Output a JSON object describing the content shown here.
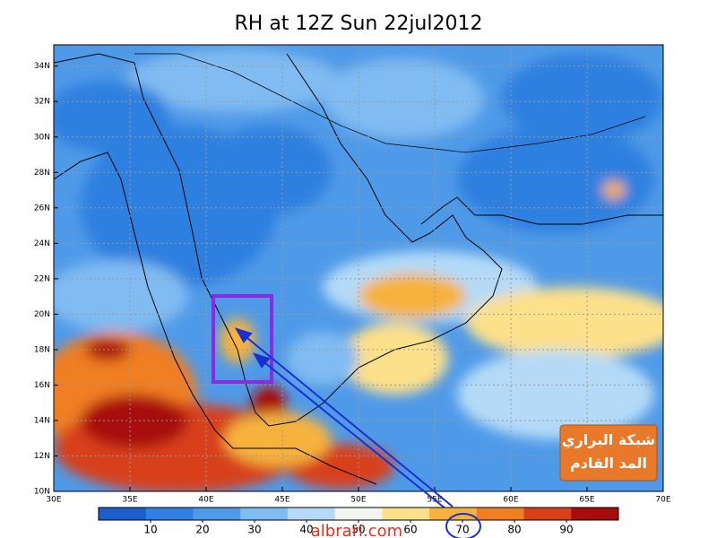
{
  "map": {
    "title": "RH at 12Z Sun 22jul2012",
    "latlim": [
      10,
      35.2
    ],
    "lonlim": [
      30,
      70
    ],
    "lat_ticks": [
      {
        "value": 10,
        "label": "10N"
      },
      {
        "value": 12,
        "label": "12N"
      },
      {
        "value": 14,
        "label": "14N"
      },
      {
        "value": 16,
        "label": "16N"
      },
      {
        "value": 18,
        "label": "18N"
      },
      {
        "value": 20,
        "label": "20N"
      },
      {
        "value": 22,
        "label": "22N"
      },
      {
        "value": 24,
        "label": "24N"
      },
      {
        "value": 26,
        "label": "26N"
      },
      {
        "value": 28,
        "label": "28N"
      },
      {
        "value": 30,
        "label": "30N"
      },
      {
        "value": 32,
        "label": "32N"
      },
      {
        "value": 34,
        "label": "34N"
      }
    ],
    "lon_ticks": [
      {
        "value": 30,
        "label": "30E"
      },
      {
        "value": 35,
        "label": "35E"
      },
      {
        "value": 40,
        "label": "40E"
      },
      {
        "value": 45,
        "label": "45E"
      },
      {
        "value": 50,
        "label": "50E"
      },
      {
        "value": 55,
        "label": "55E"
      },
      {
        "value": 60,
        "label": "60E"
      },
      {
        "value": 65,
        "label": "65E"
      },
      {
        "value": 70,
        "label": "70E"
      }
    ],
    "colorbar": {
      "range": [
        0,
        100
      ],
      "ticks": [
        10,
        20,
        30,
        40,
        50,
        60,
        70,
        80,
        90
      ],
      "colors": [
        "#1a5fcc",
        "#2f80e0",
        "#4f9ae8",
        "#80bbf2",
        "#b4daf8",
        "#f2f6ee",
        "#fde08a",
        "#f6b23c",
        "#f07e22",
        "#d8401a",
        "#a80c0c"
      ]
    },
    "logo": [
      "شبكة البراري",
      "المد القادم"
    ],
    "watermark": "albrari.com"
  }
}
